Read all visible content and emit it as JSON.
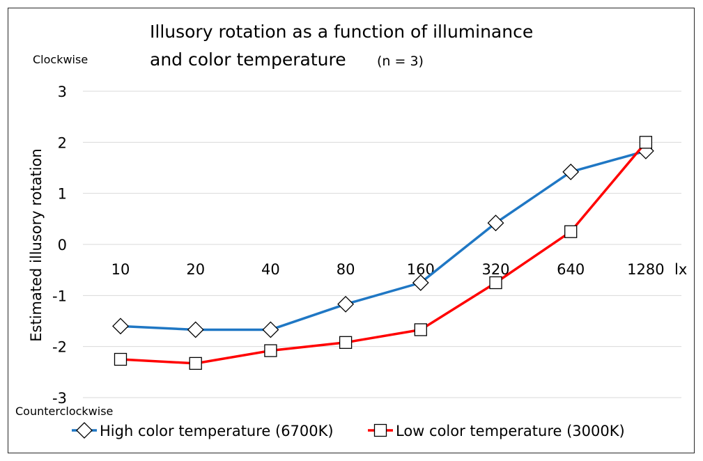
{
  "chart_data": {
    "type": "line",
    "title_line1": "Illusory rotation as a function of illuminance",
    "title_line2": "and color temperature",
    "title_note": "(n = 3)",
    "ylabel": "Estimated illusory rotation",
    "y_top_label": "Clockwise",
    "y_bottom_label": "Counterclockwise",
    "x_unit": "lx",
    "categories": [
      "10",
      "20",
      "40",
      "80",
      "160",
      "320",
      "640",
      "1280"
    ],
    "ylim": [
      -3,
      3
    ],
    "yticks": [
      3,
      2,
      1,
      0,
      -1,
      -2,
      -3
    ],
    "grid": true,
    "legend_position": "bottom",
    "series": [
      {
        "name": "High color temperature (6700K)",
        "color": "#1f77c4",
        "marker": "diamond",
        "values": [
          -1.6,
          -1.67,
          -1.67,
          -1.17,
          -0.75,
          0.42,
          1.42,
          1.83
        ]
      },
      {
        "name": "Low color temperature (3000K)",
        "color": "#ff0000",
        "marker": "square",
        "values": [
          -2.25,
          -2.33,
          -2.08,
          -1.92,
          -1.67,
          -0.75,
          0.25,
          2.0
        ]
      }
    ]
  }
}
